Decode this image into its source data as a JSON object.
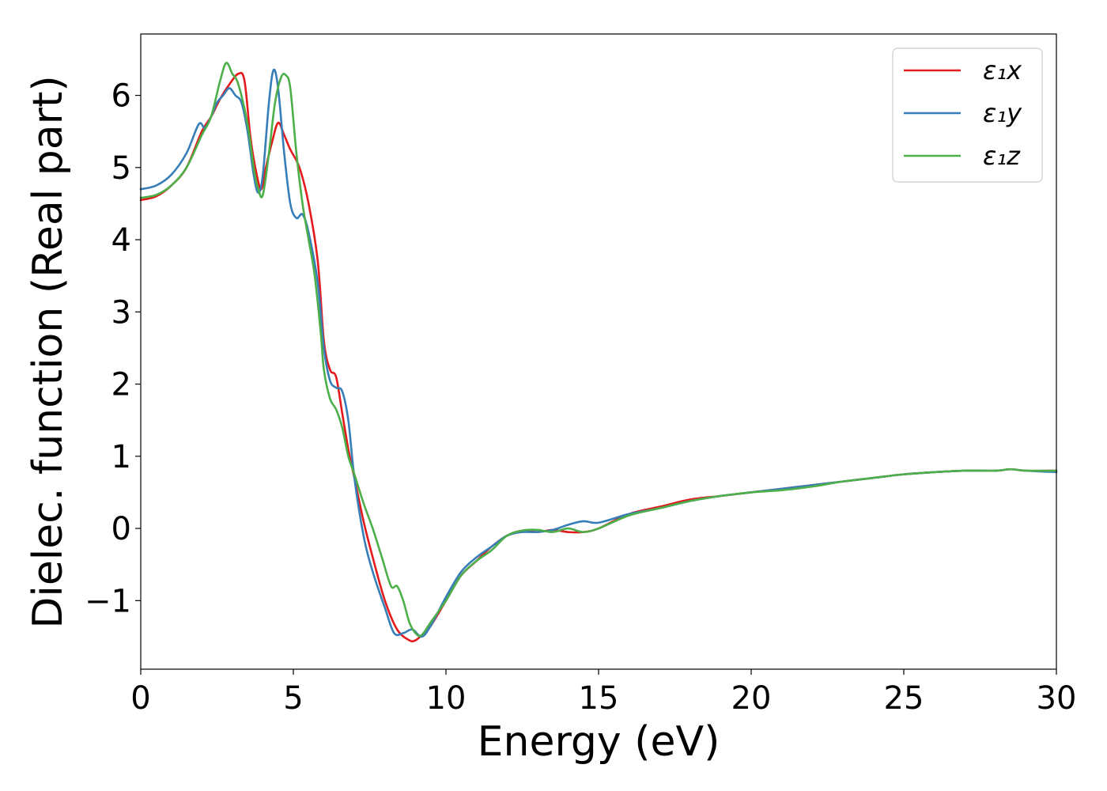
{
  "chart_data": {
    "type": "line",
    "xlabel": "Energy (eV)",
    "ylabel": "Dielec. function (Real part)",
    "xlim": [
      0,
      30
    ],
    "ylim": [
      -1.95,
      6.85
    ],
    "xticks": [
      0,
      5,
      10,
      15,
      20,
      25,
      30
    ],
    "yticks": [
      -1,
      0,
      1,
      2,
      3,
      4,
      5,
      6
    ],
    "xtick_labels": [
      "0",
      "5",
      "10",
      "15",
      "20",
      "25",
      "30"
    ],
    "ytick_labels": [
      "−1",
      "0",
      "1",
      "2",
      "3",
      "4",
      "5",
      "6"
    ],
    "grid": false,
    "legend_position": "top-right",
    "series": [
      {
        "name": "ε₁x",
        "color": "#e41a1c",
        "x": [
          0,
          0.5,
          1.0,
          1.5,
          2.0,
          2.3,
          2.6,
          2.9,
          3.2,
          3.4,
          3.6,
          3.8,
          3.95,
          4.1,
          4.3,
          4.5,
          4.7,
          4.9,
          5.2,
          5.5,
          5.8,
          6.0,
          6.2,
          6.4,
          6.6,
          6.8,
          7.0,
          7.3,
          7.6,
          8.0,
          8.4,
          8.8,
          9.0,
          9.2,
          9.5,
          10.0,
          10.5,
          11.0,
          11.5,
          12.0,
          12.5,
          13.0,
          13.5,
          14.0,
          14.5,
          15.0,
          16.0,
          17.0,
          18.0,
          19.0,
          20.0,
          21.0,
          22.0,
          23.0,
          24.0,
          25.0,
          26.0,
          27.0,
          28.0,
          28.5,
          29.0,
          30.0
        ],
        "y": [
          4.55,
          4.6,
          4.75,
          5.0,
          5.5,
          5.7,
          5.95,
          6.15,
          6.3,
          6.2,
          5.4,
          4.9,
          4.7,
          5.0,
          5.35,
          5.62,
          5.45,
          5.25,
          5.0,
          4.5,
          3.7,
          2.6,
          2.2,
          2.1,
          1.6,
          1.1,
          0.7,
          0.1,
          -0.4,
          -1.0,
          -1.4,
          -1.55,
          -1.55,
          -1.48,
          -1.35,
          -1.0,
          -0.65,
          -0.45,
          -0.25,
          -0.1,
          -0.03,
          -0.05,
          -0.02,
          -0.05,
          -0.05,
          0.0,
          0.2,
          0.3,
          0.4,
          0.45,
          0.5,
          0.55,
          0.6,
          0.65,
          0.7,
          0.75,
          0.78,
          0.8,
          0.8,
          0.82,
          0.8,
          0.8
        ]
      },
      {
        "name": "ε₁y",
        "color": "#377eb8",
        "x": [
          0,
          0.5,
          1.0,
          1.5,
          1.9,
          2.1,
          2.3,
          2.5,
          2.7,
          2.9,
          3.1,
          3.3,
          3.5,
          3.7,
          3.85,
          4.0,
          4.2,
          4.35,
          4.5,
          4.7,
          4.9,
          5.1,
          5.3,
          5.5,
          5.8,
          6.0,
          6.2,
          6.4,
          6.6,
          6.8,
          7.0,
          7.3,
          7.6,
          8.0,
          8.3,
          8.6,
          8.9,
          9.2,
          9.5,
          10.0,
          10.5,
          11.0,
          11.5,
          12.0,
          12.5,
          13.0,
          13.5,
          14.0,
          14.5,
          15.0,
          16.0,
          17.0,
          18.0,
          19.0,
          20.0,
          21.0,
          22.0,
          23.0,
          24.0,
          25.0,
          26.0,
          27.0,
          28.0,
          28.5,
          29.0,
          30.0
        ],
        "y": [
          4.7,
          4.75,
          4.9,
          5.2,
          5.6,
          5.55,
          5.7,
          5.9,
          6.0,
          6.1,
          6.0,
          5.9,
          5.5,
          4.9,
          4.65,
          4.9,
          5.9,
          6.35,
          6.1,
          5.2,
          4.5,
          4.3,
          4.35,
          4.1,
          3.4,
          2.5,
          2.05,
          1.95,
          1.9,
          1.5,
          0.7,
          -0.1,
          -0.6,
          -1.1,
          -1.45,
          -1.45,
          -1.4,
          -1.5,
          -1.35,
          -0.95,
          -0.6,
          -0.4,
          -0.25,
          -0.1,
          -0.05,
          -0.05,
          -0.02,
          0.05,
          0.1,
          0.08,
          0.2,
          0.28,
          0.38,
          0.45,
          0.5,
          0.55,
          0.6,
          0.65,
          0.7,
          0.75,
          0.78,
          0.8,
          0.8,
          0.82,
          0.8,
          0.78
        ]
      },
      {
        "name": "ε₁z",
        "color": "#4daf4a",
        "x": [
          0,
          0.5,
          1.0,
          1.5,
          2.0,
          2.3,
          2.6,
          2.8,
          3.0,
          3.2,
          3.5,
          3.7,
          3.85,
          4.0,
          4.2,
          4.4,
          4.6,
          4.75,
          4.9,
          5.1,
          5.3,
          5.5,
          5.7,
          5.9,
          6.0,
          6.2,
          6.4,
          6.6,
          6.8,
          7.0,
          7.3,
          7.6,
          7.9,
          8.2,
          8.4,
          8.6,
          8.8,
          9.0,
          9.2,
          9.5,
          10.0,
          10.5,
          11.0,
          11.5,
          12.0,
          12.5,
          13.0,
          13.5,
          14.0,
          14.5,
          15.0,
          16.0,
          17.0,
          18.0,
          19.0,
          20.0,
          21.0,
          22.0,
          23.0,
          24.0,
          25.0,
          26.0,
          27.0,
          28.0,
          28.5,
          29.0,
          30.0
        ],
        "y": [
          4.58,
          4.62,
          4.75,
          5.0,
          5.45,
          5.7,
          6.2,
          6.45,
          6.3,
          6.15,
          5.6,
          5.0,
          4.7,
          4.62,
          5.2,
          5.9,
          6.25,
          6.28,
          6.1,
          5.2,
          4.5,
          4.0,
          3.5,
          2.7,
          2.2,
          1.8,
          1.65,
          1.4,
          1.0,
          0.75,
          0.35,
          0.0,
          -0.4,
          -0.8,
          -0.8,
          -1.0,
          -1.3,
          -1.45,
          -1.48,
          -1.3,
          -1.0,
          -0.65,
          -0.45,
          -0.3,
          -0.1,
          -0.03,
          -0.02,
          -0.05,
          0.0,
          -0.05,
          0.0,
          0.18,
          0.28,
          0.38,
          0.45,
          0.5,
          0.53,
          0.58,
          0.65,
          0.7,
          0.75,
          0.78,
          0.8,
          0.8,
          0.82,
          0.8,
          0.8
        ]
      }
    ]
  }
}
